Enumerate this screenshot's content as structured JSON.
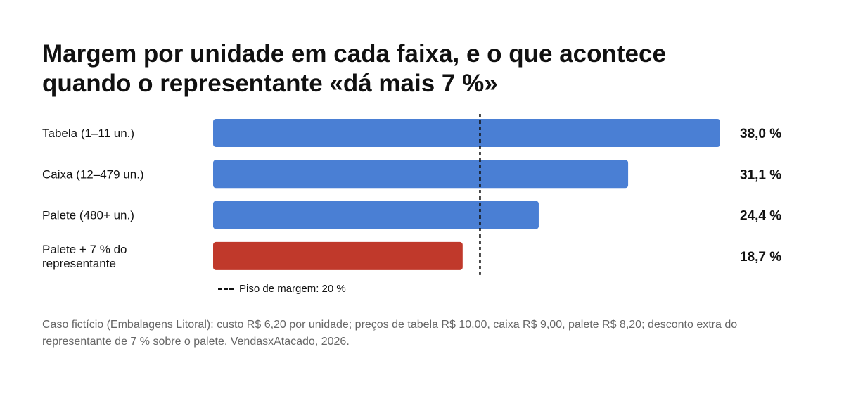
{
  "title_lines": [
    "Margem por unidade em cada faixa, e o que acontece",
    "quando o representante «dá mais 7 %»"
  ],
  "chart_data": {
    "type": "bar",
    "orientation": "horizontal",
    "categories": [
      [
        "Tabela (1–11 un.)"
      ],
      [
        "Caixa (12–479 un.)"
      ],
      [
        "Palete (480+ un.)"
      ],
      [
        "Palete + 7 % do",
        "representante"
      ]
    ],
    "values": [
      38.0,
      31.1,
      24.4,
      18.7
    ],
    "value_labels": [
      "38,0 %",
      "31,1 %",
      "24,4 %",
      "18,7 %"
    ],
    "bar_colors": [
      "#4a7fd4",
      "#4a7fd4",
      "#4a7fd4",
      "#c0392b"
    ],
    "xlim": [
      0,
      38.0
    ],
    "reference_line": {
      "value": 20,
      "style": "dashed",
      "color": "#111111"
    },
    "grid": false,
    "legend": {
      "label": "Piso de margem: 20 %",
      "placement": "bottom-left"
    }
  },
  "source_text": "Caso fictício (Embalagens Litoral): custo R$ 6,20 por unidade; preços de tabela R$ 10,00, caixa R$ 9,00, palete R$ 8,20; desconto extra do representante de 7 % sobre o palete. VendasxAtacado, 2026."
}
